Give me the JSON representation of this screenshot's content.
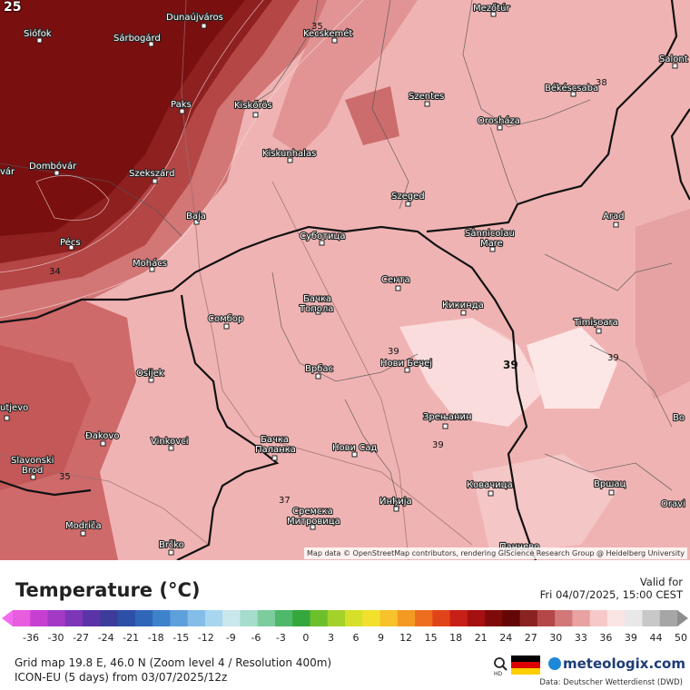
{
  "map": {
    "corner_label": "25",
    "attribution": "Map data © OpenStreetMap contributors, rendering GIScience Research Group @ Heidelberg University",
    "cities": [
      {
        "name": "Siófok"
      },
      {
        "name": "Sárbogárd"
      },
      {
        "name": "Dunaújváros"
      },
      {
        "name": "Kecskemét"
      },
      {
        "name": "Mezőtúr"
      },
      {
        "name": "Szentes"
      },
      {
        "name": "Békéscsaba"
      },
      {
        "name": "Salont"
      },
      {
        "name": "Paks"
      },
      {
        "name": "Kiskőrös"
      },
      {
        "name": "Orosháza"
      },
      {
        "name": "vár"
      },
      {
        "name": "Dombóvár"
      },
      {
        "name": "Szekszárd"
      },
      {
        "name": "Kiskunhalas"
      },
      {
        "name": "Szeged"
      },
      {
        "name": "Baja"
      },
      {
        "name": "Arad"
      },
      {
        "name": "Pécs"
      },
      {
        "name": "Суботица"
      },
      {
        "name": "Sânnicolau"
      },
      {
        "name": "Mare"
      },
      {
        "name": "Mohács"
      },
      {
        "name": "Сента"
      },
      {
        "name": "Бачка"
      },
      {
        "name": "Топола"
      },
      {
        "name": "Кикинда"
      },
      {
        "name": "Сомбор"
      },
      {
        "name": "Timișoara"
      },
      {
        "name": "Нови Бечеј"
      },
      {
        "name": "Osijek"
      },
      {
        "name": "Врбас"
      },
      {
        "name": "utjevo"
      },
      {
        "name": "Зрењанин"
      },
      {
        "name": "Bo"
      },
      {
        "name": "Đakovo"
      },
      {
        "name": "Vinkovci"
      },
      {
        "name": "Бачка"
      },
      {
        "name": "Паланка"
      },
      {
        "name": "Нови Сад"
      },
      {
        "name": "Slavonski"
      },
      {
        "name": "Brod"
      },
      {
        "name": "Вршац"
      },
      {
        "name": "Инђија"
      },
      {
        "name": "Ковачица"
      },
      {
        "name": "Oravi"
      },
      {
        "name": "Сремска"
      },
      {
        "name": "Митровица"
      },
      {
        "name": "Modriča"
      },
      {
        "name": "Brčko"
      },
      {
        "name": "Панчево"
      }
    ],
    "isotherm_labels": [
      "35",
      "38",
      "34",
      "39",
      "39",
      "39",
      "39",
      "35",
      "37"
    ]
  },
  "legend": {
    "title": "Temperature (°C)",
    "valid_label": "Valid for",
    "valid_time": "Fri 04/07/2025, 15:00 CEST",
    "ticks": [
      "-36",
      "-30",
      "-27",
      "-24",
      "-21",
      "-18",
      "-15",
      "-12",
      "-9",
      "-6",
      "-3",
      "0",
      "3",
      "6",
      "9",
      "12",
      "15",
      "18",
      "21",
      "24",
      "27",
      "30",
      "33",
      "36",
      "39",
      "44",
      "50"
    ],
    "colors": [
      "#e85ce0",
      "#c63fd0",
      "#a33ac6",
      "#7d36b8",
      "#5a34a6",
      "#3d3c9a",
      "#2d4fa6",
      "#2f66b8",
      "#3f82cc",
      "#5ea0dc",
      "#83bde8",
      "#a9d6ef",
      "#c9e8ee",
      "#a6dccb",
      "#7dcc9e",
      "#4fb86a",
      "#34a83c",
      "#6cc02c",
      "#a5d22a",
      "#d6e02a",
      "#f2e02c",
      "#f7c22a",
      "#f49a23",
      "#ee6e1f",
      "#e2441a",
      "#c81f16",
      "#a51010",
      "#7e0a0a",
      "#640606",
      "#8a2222",
      "#b44848",
      "#d27878",
      "#e8a2a2",
      "#f6c8c8",
      "#fbe4e4",
      "#e8e8e8",
      "#c8c8c8",
      "#a6a6a6"
    ],
    "grid_info": "Grid map 19.8 E, 46.0 N (Zoom level 4 / Resolution 400m)",
    "model_info": "ICON-EU (5 days) from 03/07/2025/12z",
    "brand": "meteologix.com",
    "hd_label": "HD",
    "data_credit": "Data: Deutscher Wetterdienst (DWD)"
  }
}
